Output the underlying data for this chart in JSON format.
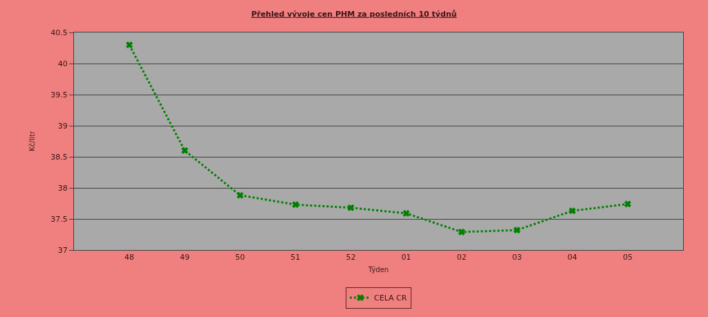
{
  "chart_data": {
    "type": "line",
    "title": "Přehled vývoje cen PHM za posledních 10 týdnů",
    "xlabel": "Týden",
    "ylabel": "Kč/litr",
    "categories": [
      "48",
      "49",
      "50",
      "51",
      "52",
      "01",
      "02",
      "03",
      "04",
      "05"
    ],
    "series": [
      {
        "name": "CELA CR",
        "color": "#008000",
        "values": [
          40.3,
          38.6,
          37.88,
          37.73,
          37.68,
          37.59,
          37.29,
          37.32,
          37.63,
          37.74
        ]
      }
    ],
    "ylim": [
      37,
      40.5
    ],
    "yticks": [
      37,
      37.5,
      38,
      38.5,
      39,
      39.5,
      40,
      40.5
    ],
    "grid": "y",
    "legend": "bottom",
    "marker": "cross",
    "line_style": "dotted"
  }
}
